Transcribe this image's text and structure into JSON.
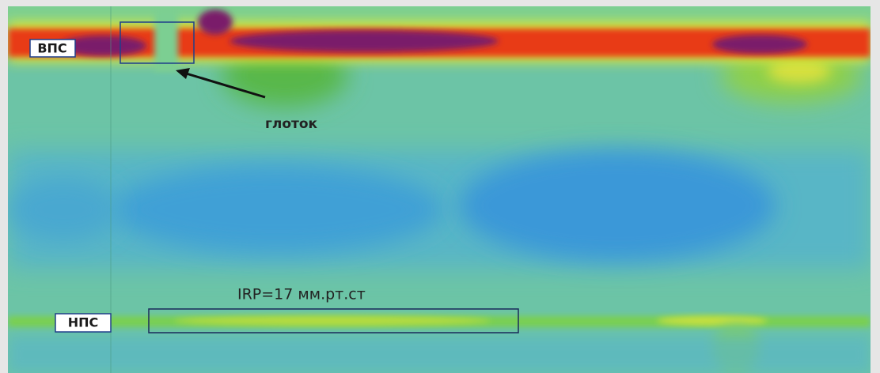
{
  "labels": {
    "upper_sphincter": "ВПС",
    "lower_sphincter": "НПС",
    "pharynx": "глоток",
    "irp": "IRP=17 мм.рт.ст"
  }
}
